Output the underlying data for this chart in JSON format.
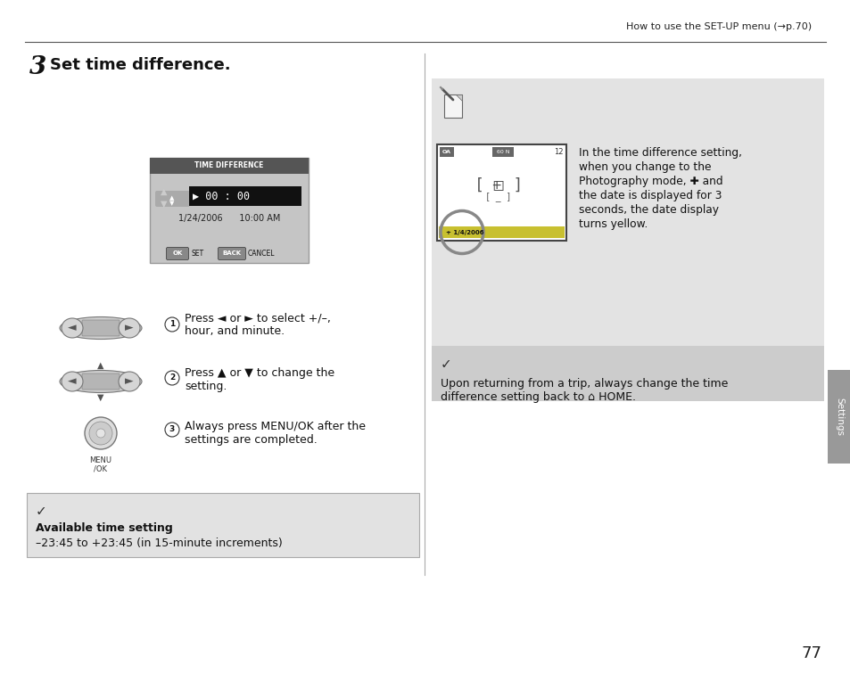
{
  "page_number": "77",
  "header_text": "How to use the SET-UP menu (→p.70)",
  "title_number": "3",
  "title_text": "Set time difference.",
  "step1_text_a": "Press ◄ or ► to select +/–,",
  "step1_text_b": "hour, and minute.",
  "step2_text_a": "Press ▲ or ▼ to change the",
  "step2_text_b": "setting.",
  "step3_text_a": "Always press MENU/OK after the",
  "step3_text_b": "settings are completed.",
  "tip_label": "✓",
  "tip_title": "Available time setting",
  "tip_body": "–23:45 to +23:45 (in 15-minute increments)",
  "note_text_a": "In the time difference setting,",
  "note_text_b": "when you change to the",
  "note_text_c": "Photography mode, ✚ and",
  "note_text_d": "the date is displayed for 3",
  "note_text_e": "seconds, the date display",
  "note_text_f": "turns yellow.",
  "note2_line1": "Upon returning from a trip, always change the time",
  "note2_line2": "difference setting back to ⌂ HOME.",
  "bg_color": "#ffffff",
  "right_panel_color": "#e3e3e3",
  "note2_panel_color": "#cccccc",
  "sidebar_color": "#999999",
  "time_diff_bg": "#b8b8b8",
  "time_diff_title_bg": "#555555",
  "time_diff_display_bg": "#111111",
  "time_diff_title": "TIME DIFFERENCE",
  "date_display": "1/24/2006     10:00 AM"
}
